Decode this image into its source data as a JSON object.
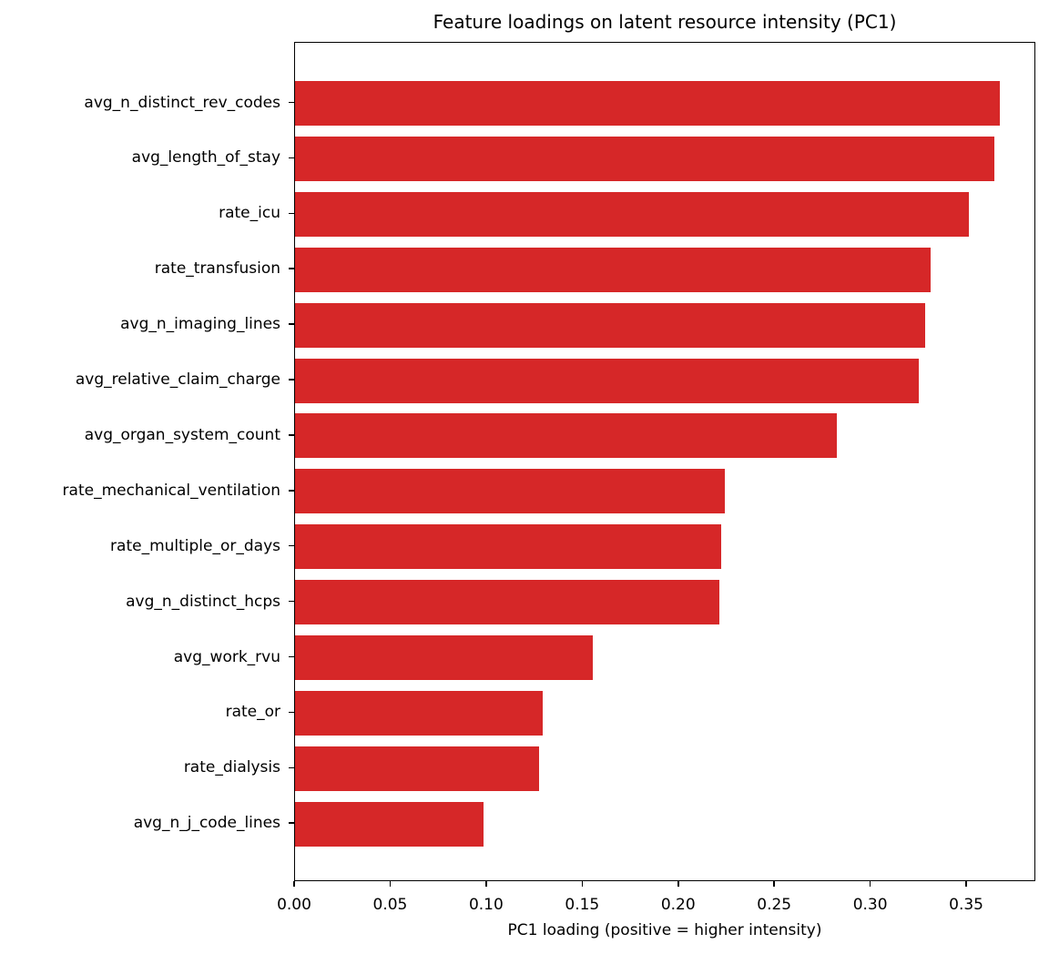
{
  "chart_data": {
    "type": "bar",
    "orientation": "horizontal",
    "title": "Feature loadings on latent resource intensity (PC1)",
    "xlabel": "PC1 loading (positive = higher intensity)",
    "ylabel": "",
    "xlim": [
      0.0,
      0.386
    ],
    "xticks": [
      "0.00",
      "0.05",
      "0.10",
      "0.15",
      "0.20",
      "0.25",
      "0.30",
      "0.35"
    ],
    "grid": false,
    "legend": null,
    "bar_color": "#d62728",
    "categories": [
      "avg_n_distinct_rev_codes",
      "avg_length_of_stay",
      "rate_icu",
      "rate_transfusion",
      "avg_n_imaging_lines",
      "avg_relative_claim_charge",
      "avg_organ_system_count",
      "rate_mechanical_ventilation",
      "rate_multiple_or_days",
      "avg_n_distinct_hcps",
      "avg_work_rvu",
      "rate_or",
      "rate_dialysis",
      "avg_n_j_code_lines"
    ],
    "values": [
      0.367,
      0.364,
      0.351,
      0.331,
      0.328,
      0.325,
      0.282,
      0.224,
      0.222,
      0.221,
      0.155,
      0.129,
      0.127,
      0.098
    ]
  }
}
